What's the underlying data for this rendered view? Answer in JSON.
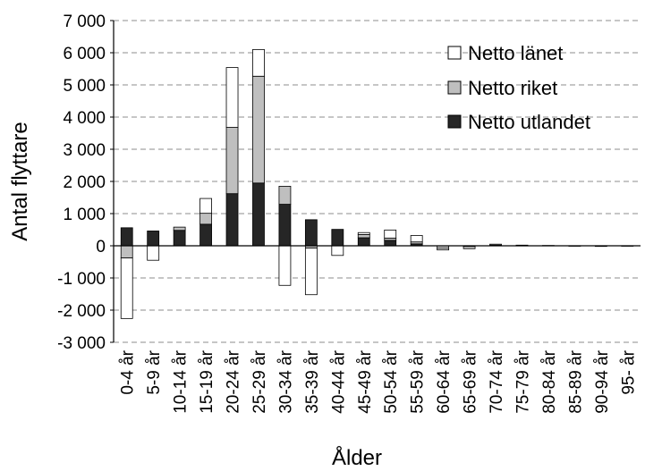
{
  "chart_data": {
    "type": "bar",
    "stacked": true,
    "title": "",
    "xlabel": "Ålder",
    "ylabel": "Antal flyttare",
    "ylim": [
      -3000,
      7000
    ],
    "yticks": [
      7000,
      6000,
      5000,
      4000,
      3000,
      2000,
      1000,
      0,
      -1000,
      -2000,
      -3000
    ],
    "ytick_labels": [
      "7 000",
      "6 000",
      "5 000",
      "4 000",
      "3 000",
      "2 000",
      "1 000",
      "0",
      "-1 000",
      "-2 000",
      "-3 000"
    ],
    "grid": "horizontal dashed",
    "legend_position": "top-right",
    "categories": [
      "0-4 år",
      "5-9 år",
      "10-14 år",
      "15-19 år",
      "20-24 år",
      "25-29 år",
      "30-34 år",
      "35-39 år",
      "40-44 år",
      "45-49 år",
      "50-54 år",
      "55-59 år",
      "60-64 år",
      "65-69 år",
      "70-74 år",
      "75-79 år",
      "80-84 år",
      "85-89 år",
      "90-94 år",
      "95- år"
    ],
    "series": [
      {
        "name": "Netto utlandet",
        "color": "#262626",
        "values": [
          560,
          460,
          480,
          670,
          1620,
          1950,
          1290,
          810,
          510,
          250,
          170,
          60,
          0,
          -20,
          20,
          10,
          0,
          0,
          0,
          0
        ]
      },
      {
        "name": "Netto riket",
        "color": "#bfbfbf",
        "values": [
          -380,
          0,
          100,
          340,
          2060,
          3320,
          560,
          -70,
          0,
          100,
          70,
          60,
          -80,
          -70,
          30,
          10,
          10,
          -10,
          -20,
          -5
        ]
      },
      {
        "name": "Netto länet",
        "color": "#ffffff",
        "values": [
          -1880,
          -450,
          0,
          460,
          1860,
          830,
          -1230,
          -1450,
          -300,
          60,
          250,
          200,
          -50,
          0,
          0,
          0,
          0,
          0,
          0,
          0
        ]
      }
    ],
    "legend_order": [
      "Netto länet",
      "Netto riket",
      "Netto utlandet"
    ]
  }
}
